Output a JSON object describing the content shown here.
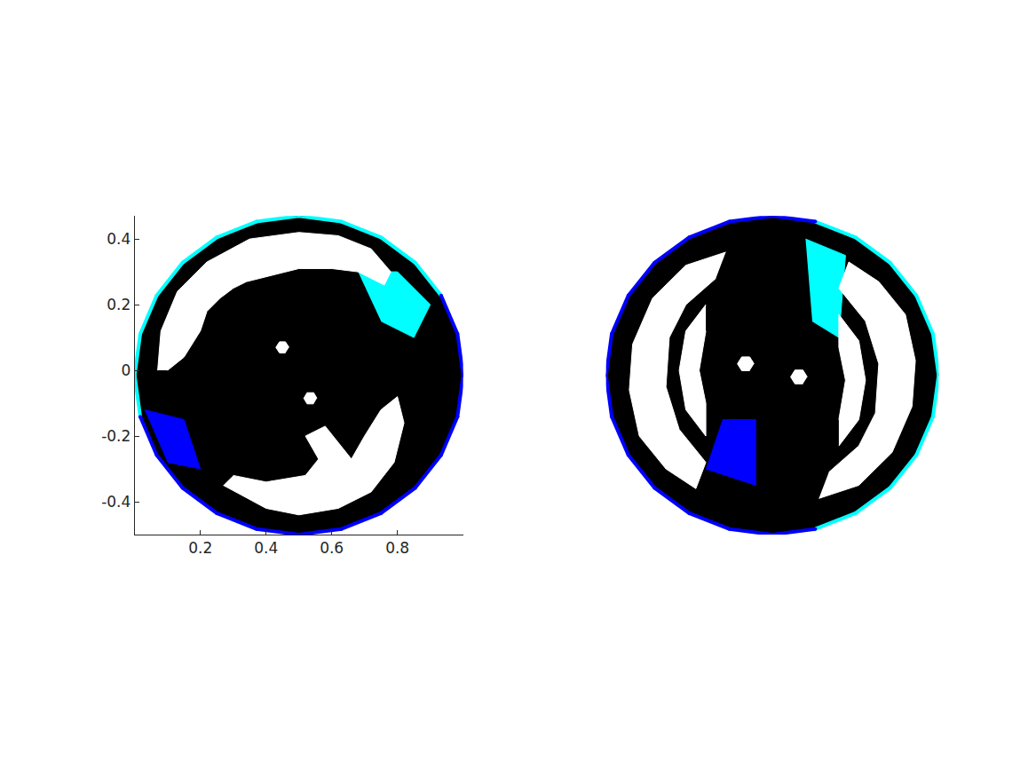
{
  "chart_data": [
    {
      "type": "scatter",
      "xlim": [
        0,
        1
      ],
      "ylim": [
        -0.5,
        0.47
      ],
      "xticks": [
        0.2,
        0.4,
        0.6,
        0.8
      ],
      "yticks": [
        -0.4,
        -0.2,
        0,
        0.2,
        0.4
      ],
      "grid": false,
      "series": [
        {
          "type": "area",
          "color": "#000000",
          "x": [
            1.0,
            0.983,
            0.933,
            0.854,
            0.75,
            0.629,
            0.5,
            0.371,
            0.25,
            0.146,
            0.067,
            0.017,
            0.0,
            0.017,
            0.067,
            0.146,
            0.25,
            0.371,
            0.5,
            0.629,
            0.75,
            0.854,
            0.933,
            0.983
          ],
          "y": [
            -0.015,
            0.111,
            0.228,
            0.328,
            0.405,
            0.453,
            0.47,
            0.453,
            0.405,
            0.328,
            0.228,
            0.111,
            -0.015,
            -0.141,
            -0.258,
            -0.358,
            -0.435,
            -0.483,
            -0.5,
            -0.483,
            -0.435,
            -0.358,
            -0.258,
            -0.141
          ]
        },
        {
          "type": "area",
          "color": "#00ffff",
          "x": [
            0.68,
            0.8,
            0.9,
            0.85,
            0.75
          ],
          "y": [
            0.3,
            0.3,
            0.2,
            0.1,
            0.15
          ]
        },
        {
          "type": "area",
          "color": "#0000ff",
          "x": [
            0.03,
            0.15,
            0.2,
            0.1
          ],
          "y": [
            -0.12,
            -0.15,
            -0.3,
            -0.28
          ]
        },
        {
          "type": "area",
          "color": "#ffffff",
          "x": [
            0.07,
            0.08,
            0.13,
            0.22,
            0.35,
            0.5,
            0.62,
            0.72,
            0.78,
            0.76,
            0.68,
            0.6,
            0.5,
            0.42,
            0.34,
            0.3,
            0.26,
            0.22,
            0.2,
            0.15,
            0.1
          ],
          "y": [
            0.0,
            0.12,
            0.24,
            0.33,
            0.4,
            0.42,
            0.41,
            0.37,
            0.3,
            0.26,
            0.3,
            0.31,
            0.31,
            0.29,
            0.27,
            0.25,
            0.22,
            0.18,
            0.12,
            0.04,
            0.0
          ]
        },
        {
          "type": "area",
          "color": "#ffffff",
          "x": [
            0.27,
            0.4,
            0.5,
            0.62,
            0.72,
            0.79,
            0.82,
            0.8,
            0.75,
            0.7,
            0.66,
            0.62,
            0.58,
            0.52,
            0.56,
            0.52,
            0.4,
            0.3
          ],
          "y": [
            -0.35,
            -0.42,
            -0.44,
            -0.42,
            -0.37,
            -0.28,
            -0.16,
            -0.08,
            -0.12,
            -0.2,
            -0.27,
            -0.22,
            -0.17,
            -0.2,
            -0.27,
            -0.32,
            -0.34,
            -0.32
          ]
        },
        {
          "type": "area",
          "color": "#ffffff",
          "x": [
            0.47,
            0.459,
            0.441,
            0.43,
            0.441,
            0.459
          ],
          "y": [
            0.07,
            0.087,
            0.087,
            0.07,
            0.053,
            0.053
          ]
        },
        {
          "type": "area",
          "color": "#ffffff",
          "x": [
            0.555,
            0.545,
            0.525,
            0.515,
            0.525,
            0.545
          ],
          "y": [
            -0.085,
            -0.068,
            -0.068,
            -0.085,
            -0.102,
            -0.102
          ]
        },
        {
          "type": "line",
          "color": "#00ffff",
          "marker": "circle",
          "x": [
            0.933,
            0.854,
            0.75,
            0.629,
            0.5,
            0.371,
            0.25,
            0.146,
            0.067,
            0.017,
            0.0,
            0.017
          ],
          "y": [
            0.228,
            0.328,
            0.405,
            0.453,
            0.47,
            0.453,
            0.405,
            0.328,
            0.228,
            0.111,
            -0.015,
            -0.141
          ]
        },
        {
          "type": "line",
          "color": "#0000ff",
          "marker": "circle",
          "x": [
            0.017,
            0.067,
            0.146,
            0.25,
            0.371,
            0.5,
            0.629,
            0.75,
            0.854,
            0.933,
            0.983,
            1.0,
            0.983,
            0.933
          ],
          "y": [
            -0.141,
            -0.258,
            -0.358,
            -0.435,
            -0.483,
            -0.5,
            -0.483,
            -0.435,
            -0.358,
            -0.258,
            -0.141,
            -0.015,
            0.111,
            0.228
          ]
        }
      ]
    },
    {
      "type": "scatter",
      "xlim": [
        0,
        1
      ],
      "ylim": [
        -0.5,
        0.47
      ],
      "tick_labels": false,
      "grid": false,
      "series": [
        {
          "type": "area",
          "color": "#000000",
          "x": [
            1.0,
            0.983,
            0.933,
            0.854,
            0.75,
            0.629,
            0.5,
            0.371,
            0.25,
            0.146,
            0.067,
            0.017,
            0.0,
            0.017,
            0.067,
            0.146,
            0.25,
            0.371,
            0.5,
            0.629,
            0.75,
            0.854,
            0.933,
            0.983
          ],
          "y": [
            -0.015,
            0.111,
            0.228,
            0.328,
            0.405,
            0.453,
            0.47,
            0.453,
            0.405,
            0.328,
            0.228,
            0.111,
            -0.015,
            -0.141,
            -0.258,
            -0.358,
            -0.435,
            -0.483,
            -0.5,
            -0.483,
            -0.435,
            -0.358,
            -0.258,
            -0.141
          ]
        },
        {
          "type": "area",
          "color": "#00ffff",
          "x": [
            0.6,
            0.72,
            0.7,
            0.62
          ],
          "y": [
            0.4,
            0.35,
            0.1,
            0.15
          ]
        },
        {
          "type": "area",
          "color": "#0000ff",
          "x": [
            0.3,
            0.45,
            0.45,
            0.35
          ],
          "y": [
            -0.3,
            -0.35,
            -0.15,
            -0.15
          ]
        },
        {
          "type": "area",
          "color": "#ffffff",
          "x": [
            0.36,
            0.24,
            0.14,
            0.08,
            0.07,
            0.1,
            0.18,
            0.27,
            0.3,
            0.22,
            0.18,
            0.19,
            0.24,
            0.33
          ],
          "y": [
            0.36,
            0.32,
            0.22,
            0.08,
            -0.06,
            -0.2,
            -0.3,
            -0.36,
            -0.28,
            -0.18,
            -0.05,
            0.1,
            0.2,
            0.28
          ]
        },
        {
          "type": "area",
          "color": "#ffffff",
          "x": [
            0.3,
            0.24,
            0.22,
            0.24,
            0.3,
            0.3,
            0.28,
            0.3
          ],
          "y": [
            0.2,
            0.12,
            0.0,
            -0.12,
            -0.2,
            -0.1,
            0.0,
            0.12
          ]
        },
        {
          "type": "area",
          "color": "#ffffff",
          "x": [
            0.64,
            0.76,
            0.86,
            0.92,
            0.93,
            0.9,
            0.82,
            0.73,
            0.7,
            0.78,
            0.82,
            0.81,
            0.76,
            0.67
          ],
          "y": [
            -0.39,
            -0.35,
            -0.25,
            -0.11,
            0.03,
            0.17,
            0.27,
            0.33,
            0.25,
            0.15,
            0.02,
            -0.13,
            -0.23,
            -0.31
          ]
        },
        {
          "type": "area",
          "color": "#ffffff",
          "x": [
            0.7,
            0.76,
            0.78,
            0.76,
            0.7,
            0.7,
            0.72,
            0.7
          ],
          "y": [
            -0.23,
            -0.15,
            -0.03,
            0.09,
            0.17,
            0.07,
            -0.03,
            -0.15
          ]
        },
        {
          "type": "area",
          "color": "#ffffff",
          "x": [
            0.445,
            0.432,
            0.408,
            0.395,
            0.408,
            0.432
          ],
          "y": [
            0.02,
            0.041,
            0.041,
            0.02,
            -0.001,
            -0.001
          ]
        },
        {
          "type": "area",
          "color": "#ffffff",
          "x": [
            0.605,
            0.592,
            0.568,
            0.555,
            0.568,
            0.592
          ],
          "y": [
            -0.02,
            0.001,
            0.001,
            -0.02,
            -0.041,
            -0.041
          ]
        },
        {
          "type": "line",
          "color": "#00ffff",
          "marker": "circle",
          "x": [
            0.629,
            0.75,
            0.854,
            0.933,
            0.983,
            1.0,
            0.983,
            0.933,
            0.854,
            0.75,
            0.629
          ],
          "y": [
            -0.483,
            -0.435,
            -0.358,
            -0.258,
            -0.141,
            -0.015,
            0.111,
            0.228,
            0.328,
            0.405,
            0.453
          ]
        },
        {
          "type": "line",
          "color": "#0000ff",
          "marker": "circle",
          "x": [
            0.629,
            0.5,
            0.371,
            0.25,
            0.146,
            0.067,
            0.017,
            0.0,
            0.017,
            0.067,
            0.146,
            0.25,
            0.371,
            0.5,
            0.629
          ],
          "y": [
            0.453,
            0.47,
            0.453,
            0.405,
            0.328,
            0.228,
            0.111,
            -0.015,
            -0.141,
            -0.258,
            -0.358,
            -0.435,
            -0.483,
            -0.5,
            -0.483
          ]
        }
      ]
    }
  ]
}
